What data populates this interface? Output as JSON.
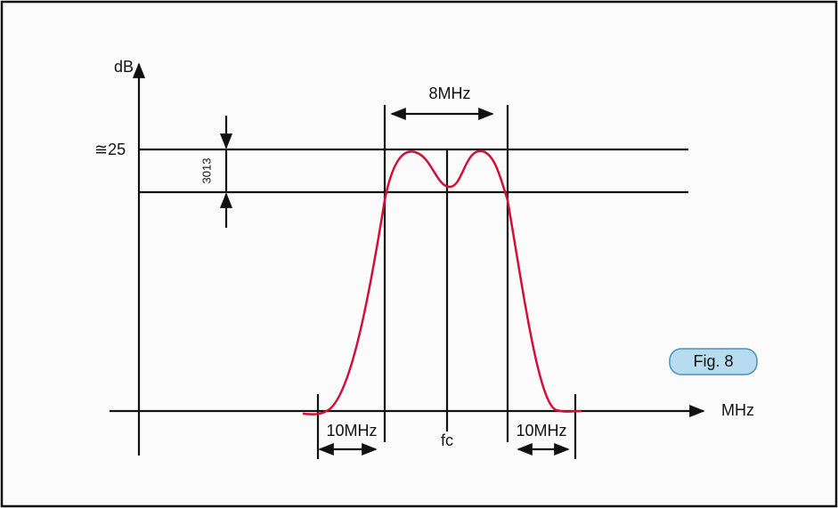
{
  "y_axis_label": "dB",
  "level_label": "≅25",
  "ripple_label": "3013",
  "bandwidth_label": "8MHz",
  "left_skirt_label": "10MHz",
  "right_skirt_label": "10MHz",
  "center_label": "fc",
  "x_axis_label": "MHz",
  "figure_label": "Fig. 8"
}
